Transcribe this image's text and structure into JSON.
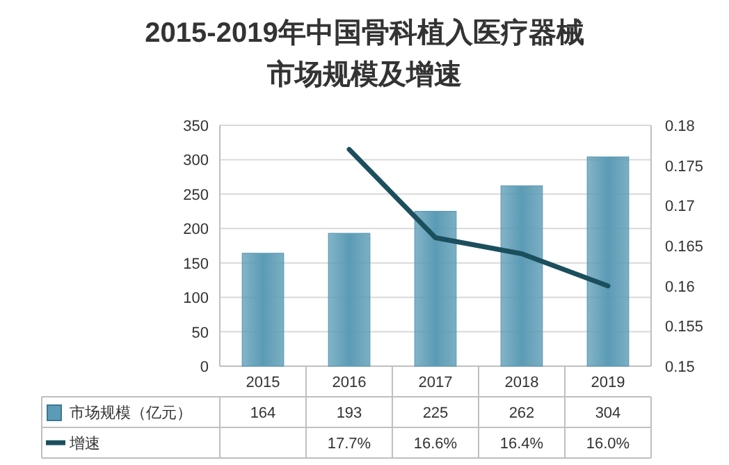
{
  "chart_data": {
    "type": "bar",
    "title": "2015-2019年中国骨科植入医疗器械市场规模及增速",
    "categories": [
      "2015",
      "2016",
      "2017",
      "2018",
      "2019"
    ],
    "series": [
      {
        "name": "市场规模（亿元）",
        "color": "#5b9bb5",
        "values": [
          164,
          193,
          225,
          262,
          304
        ],
        "value_labels": [
          "164",
          "193",
          "225",
          "262",
          "304"
        ]
      },
      {
        "name": "增速",
        "type": "line",
        "axis": "y2",
        "color": "#1b4f5e",
        "values": [
          null,
          0.177,
          0.166,
          0.164,
          0.16
        ],
        "value_labels": [
          null,
          "17.7%",
          "16.6%",
          "16.4%",
          "16.0%"
        ]
      }
    ],
    "ylim": [
      0,
      350
    ],
    "yticks": [
      0,
      50,
      100,
      150,
      200,
      250,
      300,
      350
    ],
    "y2lim": [
      0.15,
      0.18
    ],
    "y2ticks": [
      0.15,
      0.155,
      0.16,
      0.165,
      0.17,
      0.175,
      0.18
    ],
    "grid": "y",
    "legend": "bottom",
    "marker": "none",
    "line_style": "solid"
  }
}
